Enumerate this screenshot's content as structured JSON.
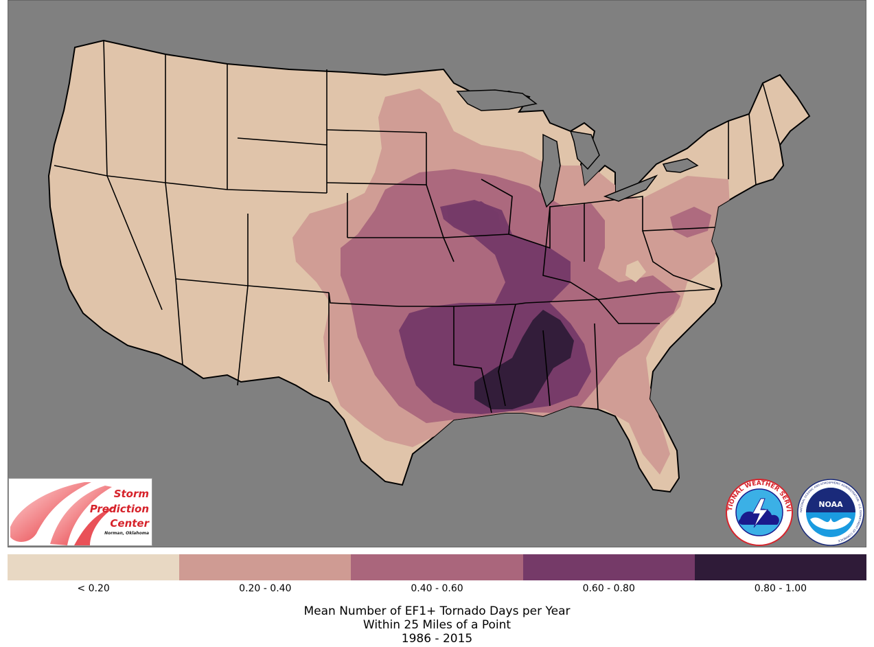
{
  "title_lines": [
    "Mean Number of EF1+ Tornado Days per Year",
    "Within 25 Miles of a Point",
    "1986 - 2015"
  ],
  "legend": {
    "bins": [
      {
        "label": "< 0.20",
        "color": "#e8d8c3"
      },
      {
        "label": "0.20 - 0.40",
        "color": "#cf9b93"
      },
      {
        "label": "0.40 - 0.60",
        "color": "#aa667c"
      },
      {
        "label": "0.60 - 0.80",
        "color": "#753a68"
      },
      {
        "label": "0.80 - 1.00",
        "color": "#2f1b38"
      }
    ]
  },
  "map": {
    "background_color": "#808080",
    "land_base_color": "#e0c4aa",
    "peak_region": "lower Mississippi Valley"
  },
  "logos": {
    "spc": {
      "line1": "Storm",
      "line2": "Prediction",
      "line3": "Center",
      "sub": "Norman, Oklahoma"
    },
    "nws": {
      "text": "NATIONAL WEATHER SERVICE"
    },
    "noaa": {
      "text": "NOAA",
      "ring_text": "NATIONAL OCEANIC AND ATMOSPHERIC ADMINISTRATION · U.S. DEPARTMENT OF COMMERCE"
    }
  }
}
